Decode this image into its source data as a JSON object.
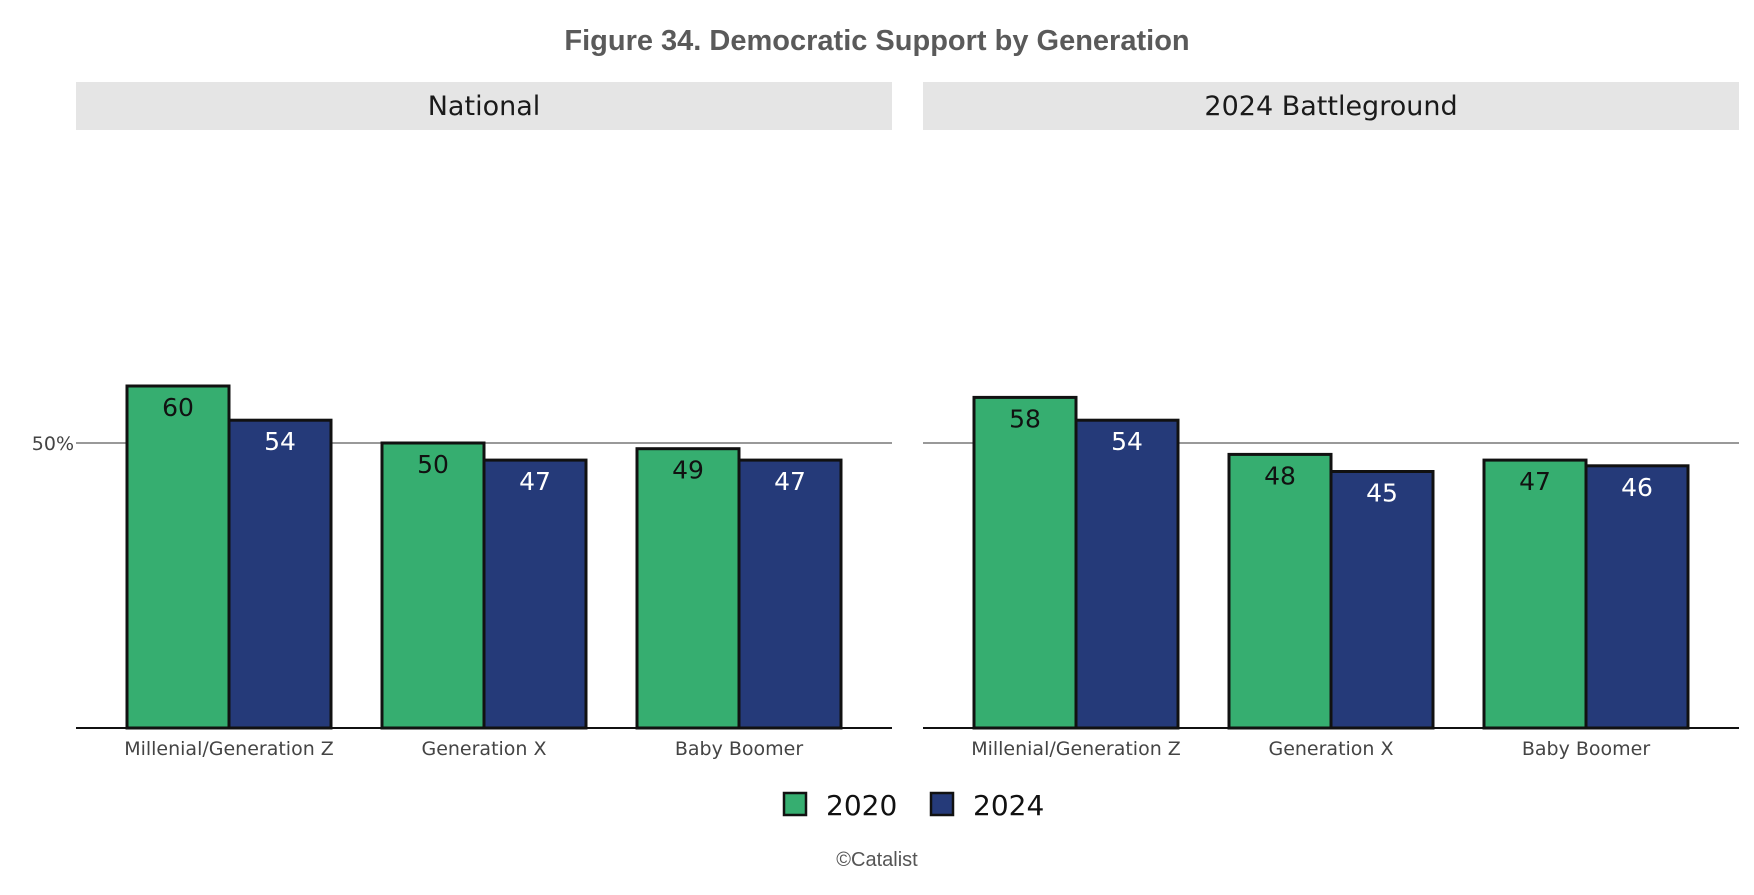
{
  "chart_data": {
    "type": "bar",
    "title": "Figure 34. Democratic Support by Generation",
    "source": "©Catalist",
    "ylim": [
      0,
      100
    ],
    "reference_line": {
      "value": 50,
      "label": "50%"
    },
    "grid": false,
    "legend_position": "bottom-center",
    "categories": [
      "Millenial/Generation Z",
      "Generation X",
      "Baby Boomer"
    ],
    "series": [
      {
        "name": "2020",
        "color": "#36ae70"
      },
      {
        "name": "2024",
        "color": "#253a79"
      }
    ],
    "panels": [
      {
        "title": "National",
        "values": {
          "2020": [
            60,
            50,
            49
          ],
          "2024": [
            54,
            47,
            47
          ]
        }
      },
      {
        "title": "2024 Battleground",
        "values": {
          "2020": [
            58,
            48,
            47
          ],
          "2024": [
            54,
            45,
            46
          ]
        }
      }
    ]
  }
}
